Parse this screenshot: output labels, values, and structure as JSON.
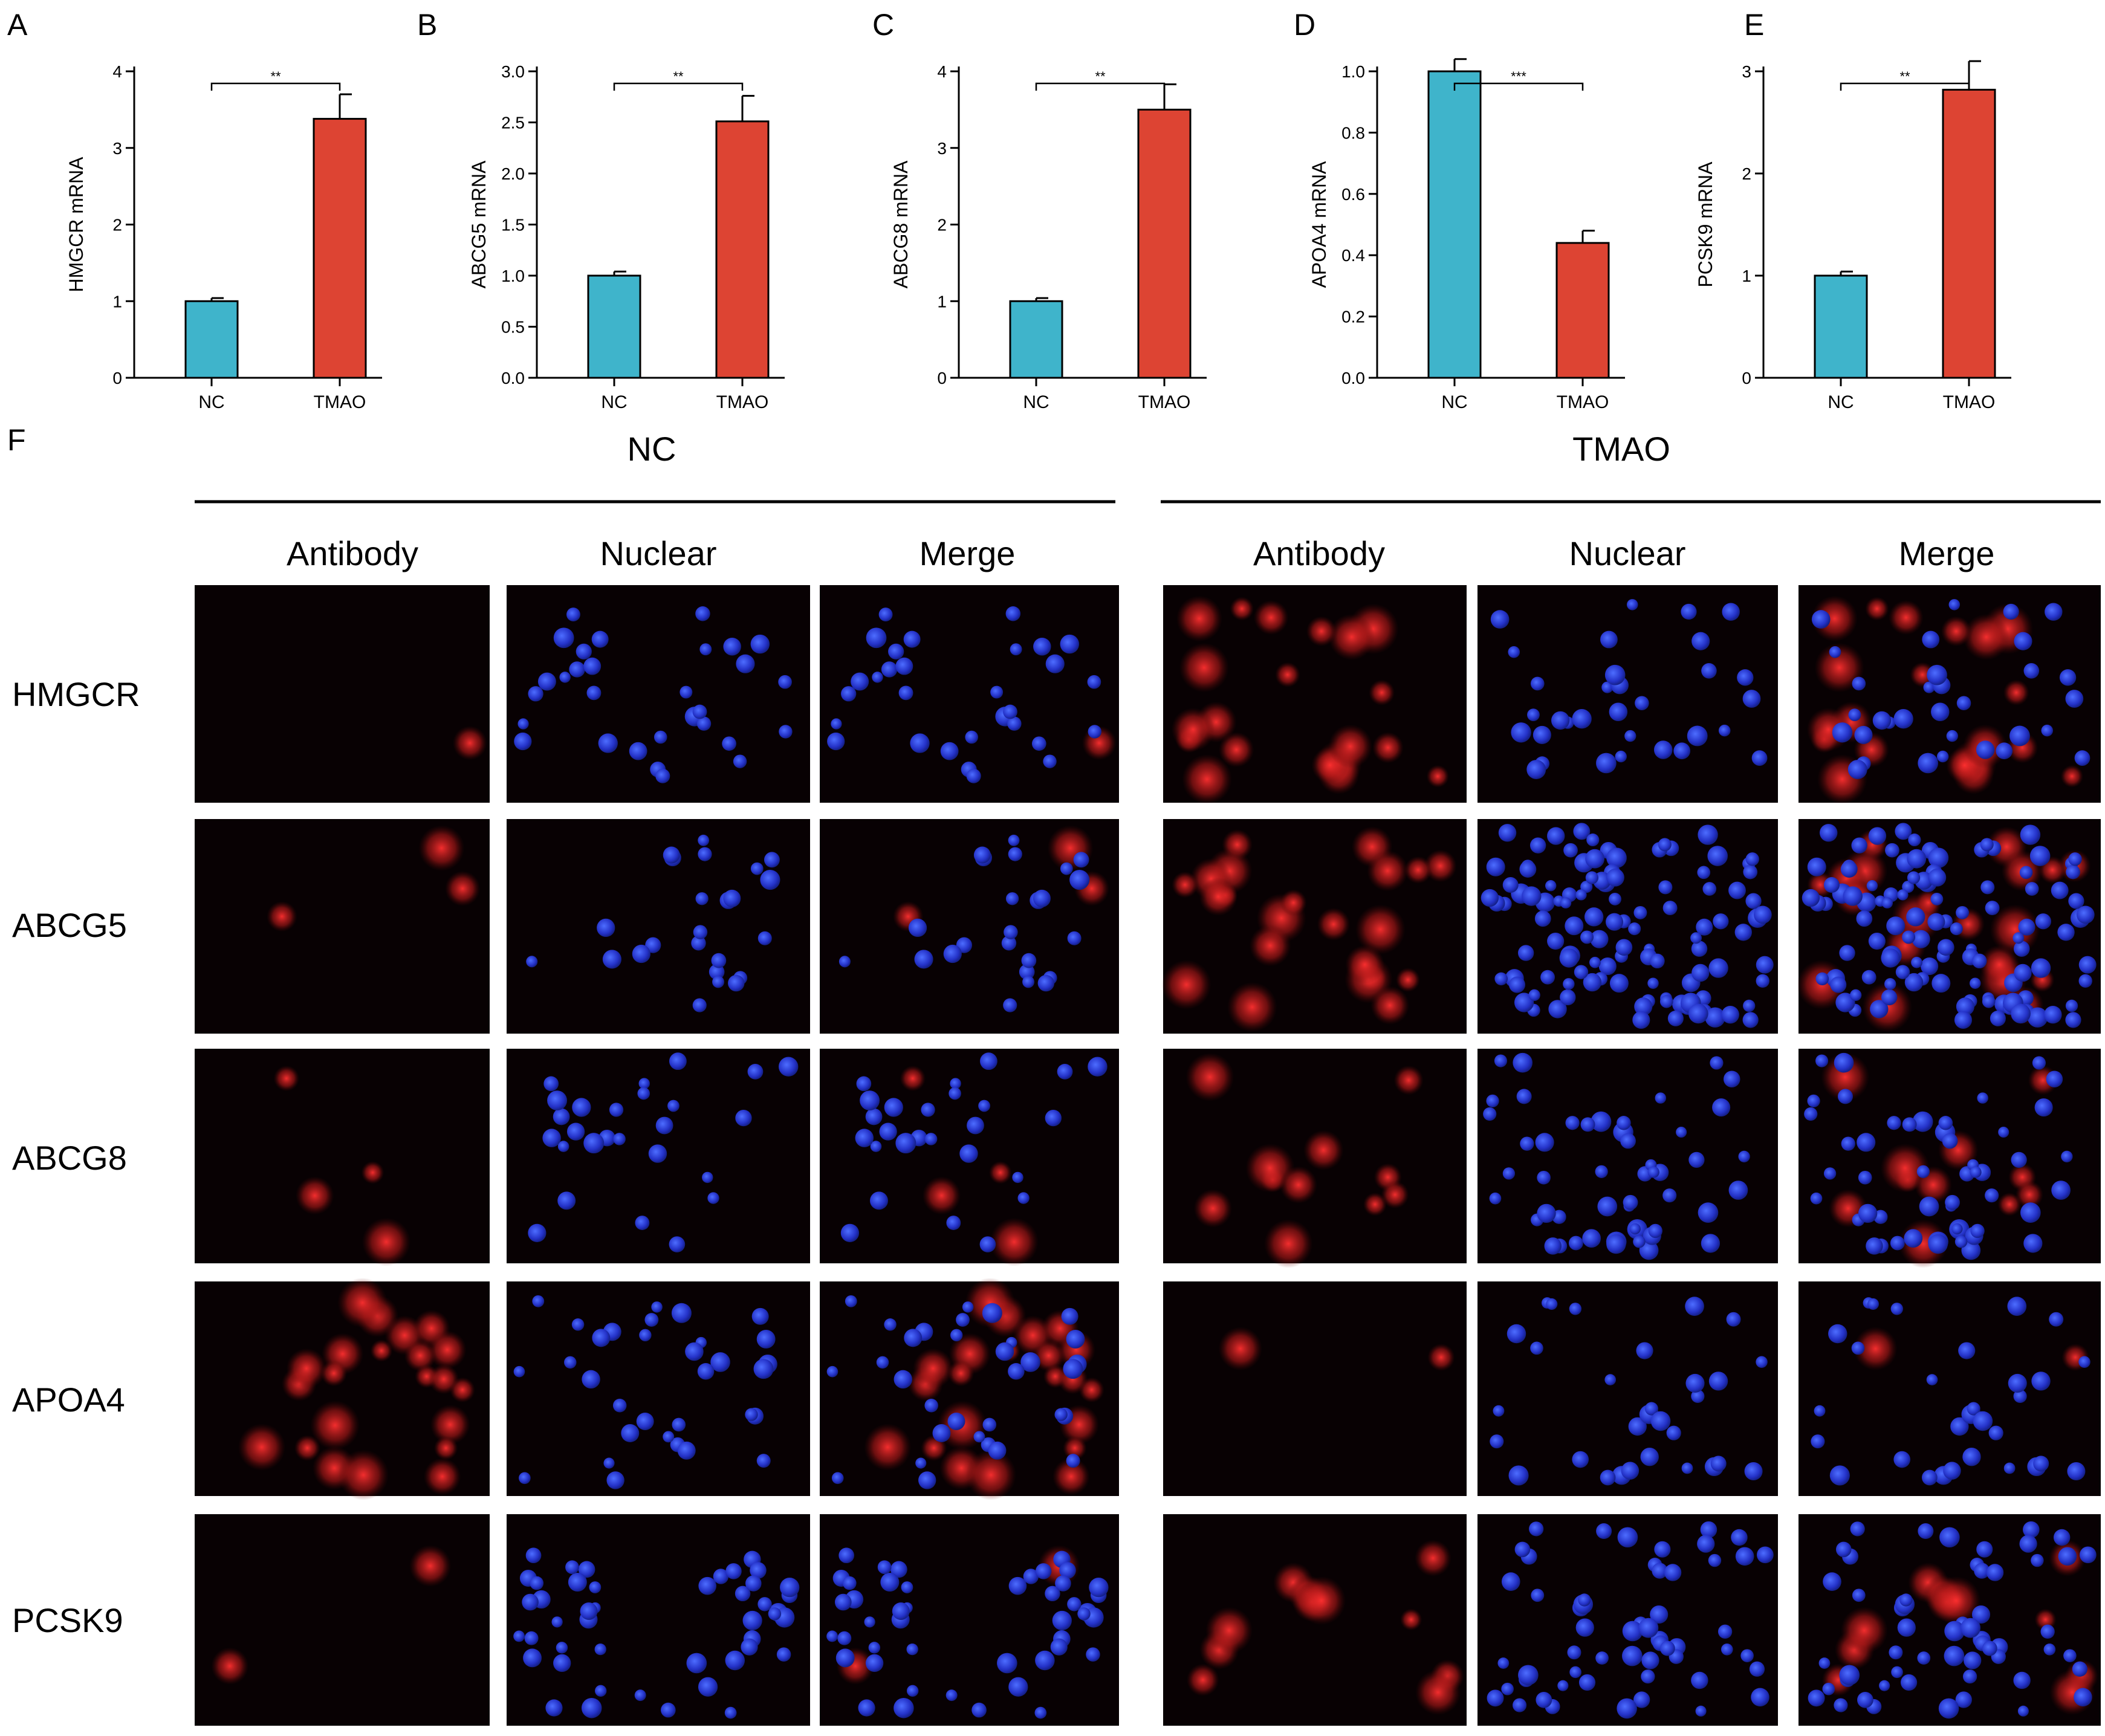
{
  "colors": {
    "nc": "#3fb4cb",
    "tmao": "#dd4433",
    "axis": "#000000",
    "panel_bg": "#080103"
  },
  "chart_data": [
    {
      "panel": "A",
      "type": "bar",
      "categories": [
        "NC",
        "TMAO"
      ],
      "values": [
        1.0,
        3.38
      ],
      "errors": [
        0.04,
        0.32
      ],
      "ylabel": "HMGCR mRNA",
      "ylim": [
        0,
        4
      ],
      "yticks": [
        "0",
        "1",
        "2",
        "3",
        "4"
      ],
      "significance": "**"
    },
    {
      "panel": "B",
      "type": "bar",
      "categories": [
        "NC",
        "TMAO"
      ],
      "values": [
        1.0,
        2.51
      ],
      "errors": [
        0.04,
        0.25
      ],
      "ylabel": "ABCG5 mRNA",
      "ylim": [
        0,
        3
      ],
      "yticks": [
        "0.0",
        "0.5",
        "1.0",
        "1.5",
        "2.0",
        "2.5",
        "3.0"
      ],
      "significance": "**"
    },
    {
      "panel": "C",
      "type": "bar",
      "categories": [
        "NC",
        "TMAO"
      ],
      "values": [
        1.0,
        3.5
      ],
      "errors": [
        0.04,
        0.33
      ],
      "ylabel": "ABCG8 mRNA",
      "ylim": [
        0,
        4
      ],
      "yticks": [
        "0",
        "1",
        "2",
        "3",
        "4"
      ],
      "significance": "**"
    },
    {
      "panel": "D",
      "type": "bar",
      "categories": [
        "NC",
        "TMAO"
      ],
      "values": [
        1.0,
        0.44
      ],
      "errors": [
        0.04,
        0.04
      ],
      "ylabel": "APOA4 mRNA",
      "ylim": [
        0,
        1.0
      ],
      "yticks": [
        "0.0",
        "0.2",
        "0.4",
        "0.6",
        "0.8",
        "1.0"
      ],
      "significance": "***"
    },
    {
      "panel": "E",
      "type": "bar",
      "categories": [
        "NC",
        "TMAO"
      ],
      "values": [
        1.0,
        2.82
      ],
      "errors": [
        0.04,
        0.28
      ],
      "ylabel": "PCSK9 mRNA",
      "ylim": [
        0,
        3
      ],
      "yticks": [
        "0",
        "1",
        "2",
        "3"
      ],
      "significance": "**"
    }
  ],
  "panel_f": {
    "label": "F",
    "groups": [
      "NC",
      "TMAO"
    ],
    "columns": [
      "Antibody",
      "Nuclear",
      "Merge"
    ],
    "rows": [
      "HMGCR",
      "ABCG5",
      "ABCG8",
      "APOA4",
      "PCSK9"
    ]
  }
}
